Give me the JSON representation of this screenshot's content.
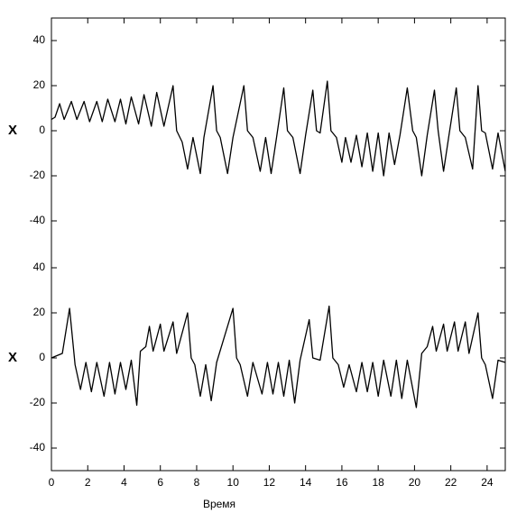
{
  "chart_data": [
    {
      "type": "line",
      "ylabel": "X",
      "color": "#000000",
      "xlim": [
        0,
        25
      ],
      "ylim": [
        -50,
        50
      ],
      "yticks": [
        -40,
        -20,
        0,
        20,
        40
      ],
      "x": [
        0,
        0.2,
        0.45,
        0.7,
        1.1,
        1.4,
        1.8,
        2.1,
        2.5,
        2.8,
        3.1,
        3.5,
        3.8,
        4.1,
        4.4,
        4.8,
        5.1,
        5.5,
        5.8,
        6.2,
        6.7,
        6.9,
        7.2,
        7.5,
        7.8,
        8.2,
        8.4,
        8.9,
        9.1,
        9.3,
        9.7,
        10.0,
        10.6,
        10.8,
        11.1,
        11.5,
        11.8,
        12.1,
        12.4,
        12.8,
        13.0,
        13.3,
        13.7,
        14.0,
        14.4,
        14.6,
        14.8,
        15.2,
        15.4,
        15.7,
        16.0,
        16.2,
        16.5,
        16.8,
        17.1,
        17.4,
        17.7,
        18.0,
        18.3,
        18.6,
        18.9,
        19.2,
        19.6,
        19.9,
        20.1,
        20.4,
        20.7,
        21.1,
        21.3,
        21.6,
        21.9,
        22.3,
        22.5,
        22.8,
        23.2,
        23.5,
        23.7,
        23.9,
        24.3,
        24.6,
        25
      ],
      "values": [
        5,
        6,
        12,
        5,
        13,
        5,
        13,
        4,
        13,
        4,
        14,
        4,
        14,
        3,
        15,
        3,
        16,
        2,
        17,
        2,
        20,
        0,
        -5,
        -17,
        -3,
        -19,
        -3,
        20,
        0,
        -3,
        -19,
        -3,
        20,
        0,
        -3,
        -18,
        -3,
        -19,
        -3,
        19,
        0,
        -3,
        -19,
        -2,
        18,
        0,
        -1,
        22,
        0,
        -3,
        -14,
        -3,
        -14,
        -2,
        -16,
        -1,
        -18,
        -1,
        -20,
        -1,
        -15,
        -2,
        19,
        0,
        -3,
        -20,
        -2,
        18,
        0,
        -18,
        -2,
        19,
        0,
        -3,
        -17,
        20,
        0,
        -1,
        -17,
        -1,
        -18
      ]
    },
    {
      "type": "line",
      "ylabel": "X",
      "xlabel": "Время",
      "color": "#000000",
      "xlim": [
        0,
        25
      ],
      "ylim": [
        -50,
        50
      ],
      "yticks": [
        -40,
        -20,
        0,
        20,
        40
      ],
      "xticks": [
        0,
        2,
        4,
        6,
        8,
        10,
        12,
        14,
        16,
        18,
        20,
        22,
        24
      ],
      "x": [
        0,
        0.3,
        0.6,
        1.0,
        1.3,
        1.6,
        1.9,
        2.2,
        2.5,
        2.9,
        3.2,
        3.5,
        3.8,
        4.1,
        4.4,
        4.7,
        4.9,
        5.2,
        5.4,
        5.6,
        6.0,
        6.2,
        6.7,
        6.9,
        7.5,
        7.7,
        7.9,
        8.2,
        8.5,
        8.8,
        9.1,
        10.0,
        10.2,
        10.4,
        10.8,
        11.1,
        11.6,
        11.9,
        12.2,
        12.5,
        12.8,
        13.1,
        13.4,
        13.7,
        14.2,
        14.4,
        14.8,
        15.3,
        15.5,
        15.8,
        16.1,
        16.4,
        16.8,
        17.1,
        17.4,
        17.7,
        18.0,
        18.3,
        18.7,
        19.0,
        19.3,
        19.6,
        20.1,
        20.4,
        20.7,
        21.0,
        21.2,
        21.6,
        21.8,
        22.2,
        22.4,
        22.8,
        23.0,
        23.5,
        23.7,
        23.9,
        24.3,
        24.6,
        25
      ],
      "values": [
        0,
        1,
        2,
        22,
        -3,
        -14,
        -2,
        -15,
        -2,
        -17,
        -2,
        -16,
        -2,
        -14,
        -1,
        -21,
        3,
        5,
        14,
        3,
        15,
        3,
        16,
        2,
        20,
        0,
        -3,
        -17,
        -3,
        -19,
        -2,
        22,
        0,
        -3,
        -17,
        -2,
        -16,
        -2,
        -16,
        -2,
        -17,
        -1,
        -20,
        -1,
        17,
        0,
        -1,
        23,
        0,
        -3,
        -13,
        -3,
        -15,
        -2,
        -15,
        -2,
        -17,
        -1,
        -17,
        -1,
        -18,
        -1,
        -22,
        2,
        5,
        14,
        3,
        15,
        3,
        16,
        3,
        16,
        2,
        20,
        0,
        -3,
        -18,
        -1,
        -2
      ]
    }
  ]
}
